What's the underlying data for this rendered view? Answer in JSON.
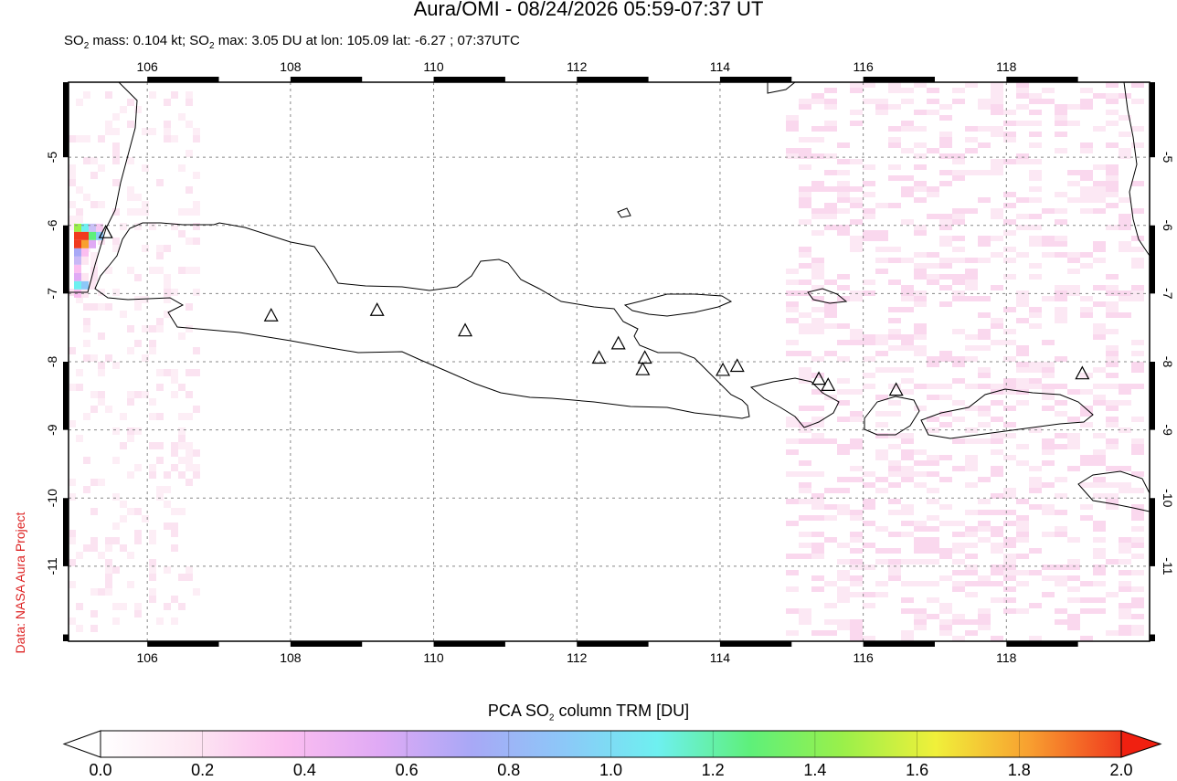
{
  "title": "Aura/OMI - 08/24/2026 05:59-07:37 UT",
  "subtitle": {
    "mass_prefix": "SO",
    "mass_sub": "2",
    "mass_text": " mass: 0.104 kt; SO",
    "max_sub": "2",
    "max_text": " max: 3.05 DU at lon: 105.09 lat: -6.27 ; 07:37UTC"
  },
  "credit": "Data: NASA Aura Project",
  "map": {
    "lon_range": [
      104.9,
      120.0
    ],
    "lat_range": [
      -12.1,
      -3.9
    ],
    "lon_ticks": [
      "106",
      "108",
      "110",
      "112",
      "114",
      "116",
      "118"
    ],
    "lat_ticks": [
      "-5",
      "-6",
      "-7",
      "-8",
      "-9",
      "-10",
      "-11"
    ],
    "volcanoes": [
      {
        "lon": 105.42,
        "lat": -6.1
      },
      {
        "lon": 107.73,
        "lat": -7.32
      },
      {
        "lon": 109.21,
        "lat": -7.24
      },
      {
        "lon": 110.44,
        "lat": -7.54
      },
      {
        "lon": 112.31,
        "lat": -7.94
      },
      {
        "lon": 112.58,
        "lat": -7.73
      },
      {
        "lon": 112.95,
        "lat": -7.94
      },
      {
        "lon": 112.92,
        "lat": -8.11
      },
      {
        "lon": 114.04,
        "lat": -8.12
      },
      {
        "lon": 114.24,
        "lat": -8.06
      },
      {
        "lon": 115.38,
        "lat": -8.25
      },
      {
        "lon": 115.51,
        "lat": -8.34
      },
      {
        "lon": 116.46,
        "lat": -8.41
      },
      {
        "lon": 119.06,
        "lat": -8.17
      }
    ],
    "so2_hotspot": {
      "lon": 105.09,
      "lat": -6.27,
      "value_du": 3.05
    }
  },
  "colorbar": {
    "title_prefix": "PCA SO",
    "title_sub": "2",
    "title_suffix": " column TRM [DU]",
    "ticks": [
      "0.0",
      "0.2",
      "0.4",
      "0.6",
      "0.8",
      "1.0",
      "1.2",
      "1.4",
      "1.6",
      "1.8",
      "2.0"
    ],
    "colors": [
      "#ffffff",
      "#fde6f2",
      "#fbbef0",
      "#e0aaf5",
      "#a8a8f6",
      "#8cc8f8",
      "#6ef0f0",
      "#5ef07a",
      "#9af04a",
      "#f0f03a",
      "#f8a030",
      "#f03a1e"
    ]
  }
}
